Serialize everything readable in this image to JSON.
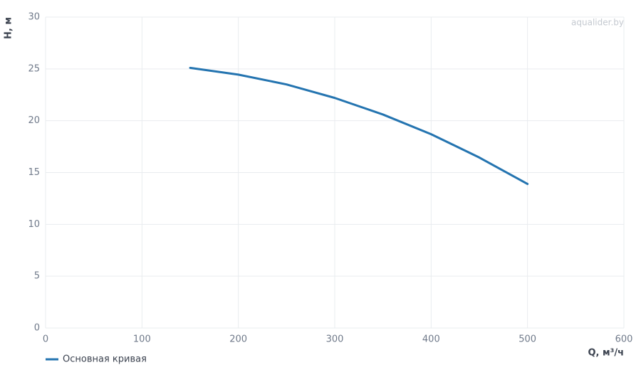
{
  "chart_data": {
    "type": "line",
    "watermark": "aqualider.by",
    "xlabel": "Q, м³/ч",
    "ylabel": "H, м",
    "x": [
      150,
      200,
      250,
      300,
      350,
      400,
      450,
      500
    ],
    "series": [
      {
        "name": "Основная кривая",
        "color": "#2474b0",
        "values": [
          25.1,
          24.45,
          23.5,
          22.2,
          20.6,
          18.7,
          16.45,
          13.9
        ]
      }
    ],
    "xlim": [
      0,
      600
    ],
    "ylim": [
      0,
      30
    ],
    "xticks": [
      0,
      100,
      200,
      300,
      400,
      500,
      600
    ],
    "yticks": [
      0,
      5,
      10,
      15,
      20,
      25,
      30
    ],
    "grid": true,
    "legend": "bottom-left"
  }
}
